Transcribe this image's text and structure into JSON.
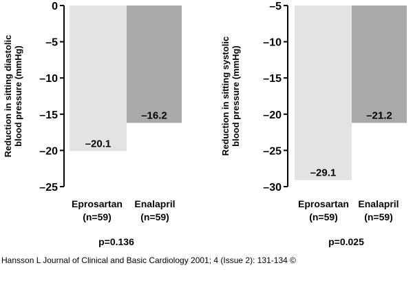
{
  "chart_data": [
    {
      "type": "bar",
      "ylabel_line1": "Reduction in sitting diastolic",
      "ylabel_line2": "blood pressure (mmHg)",
      "categories": [
        {
          "name": "Eprosartan",
          "n": "(n=59)"
        },
        {
          "name": "Enalapril",
          "n": "(n=59)"
        }
      ],
      "values": [
        -20.1,
        -16.2
      ],
      "data_labels": [
        "–20.1",
        "–16.2"
      ],
      "bar_colors": [
        "#e3e3e3",
        "#a9a9a9"
      ],
      "ylim": [
        -25,
        0
      ],
      "yticks": [
        0,
        -5,
        -10,
        -15,
        -20,
        -25
      ],
      "ytick_labels": [
        "0",
        "–5",
        "–10",
        "–15",
        "–20",
        "–25"
      ],
      "pvalue": "p=0.136"
    },
    {
      "type": "bar",
      "ylabel_line1": "Reduction in sitting systolic",
      "ylabel_line2": "blood pressure (mmHg)",
      "categories": [
        {
          "name": "Eprosartan",
          "n": "(n=59)"
        },
        {
          "name": "Enalapril",
          "n": "(n=59)"
        }
      ],
      "values": [
        -29.1,
        -21.2
      ],
      "data_labels": [
        "–29.1",
        "–21.2"
      ],
      "bar_colors": [
        "#e3e3e3",
        "#a9a9a9"
      ],
      "ylim": [
        -30,
        -5
      ],
      "yticks": [
        -5,
        -10,
        -15,
        -20,
        -25,
        -30
      ],
      "ytick_labels": [
        "–5",
        "–10",
        "–15",
        "–20",
        "–25",
        "–30"
      ],
      "pvalue": "p=0.025"
    }
  ],
  "caption": "Hansson L Journal of Clinical and Basic Cardiology 2001; 4 (Issue 2): 131-134 ©"
}
